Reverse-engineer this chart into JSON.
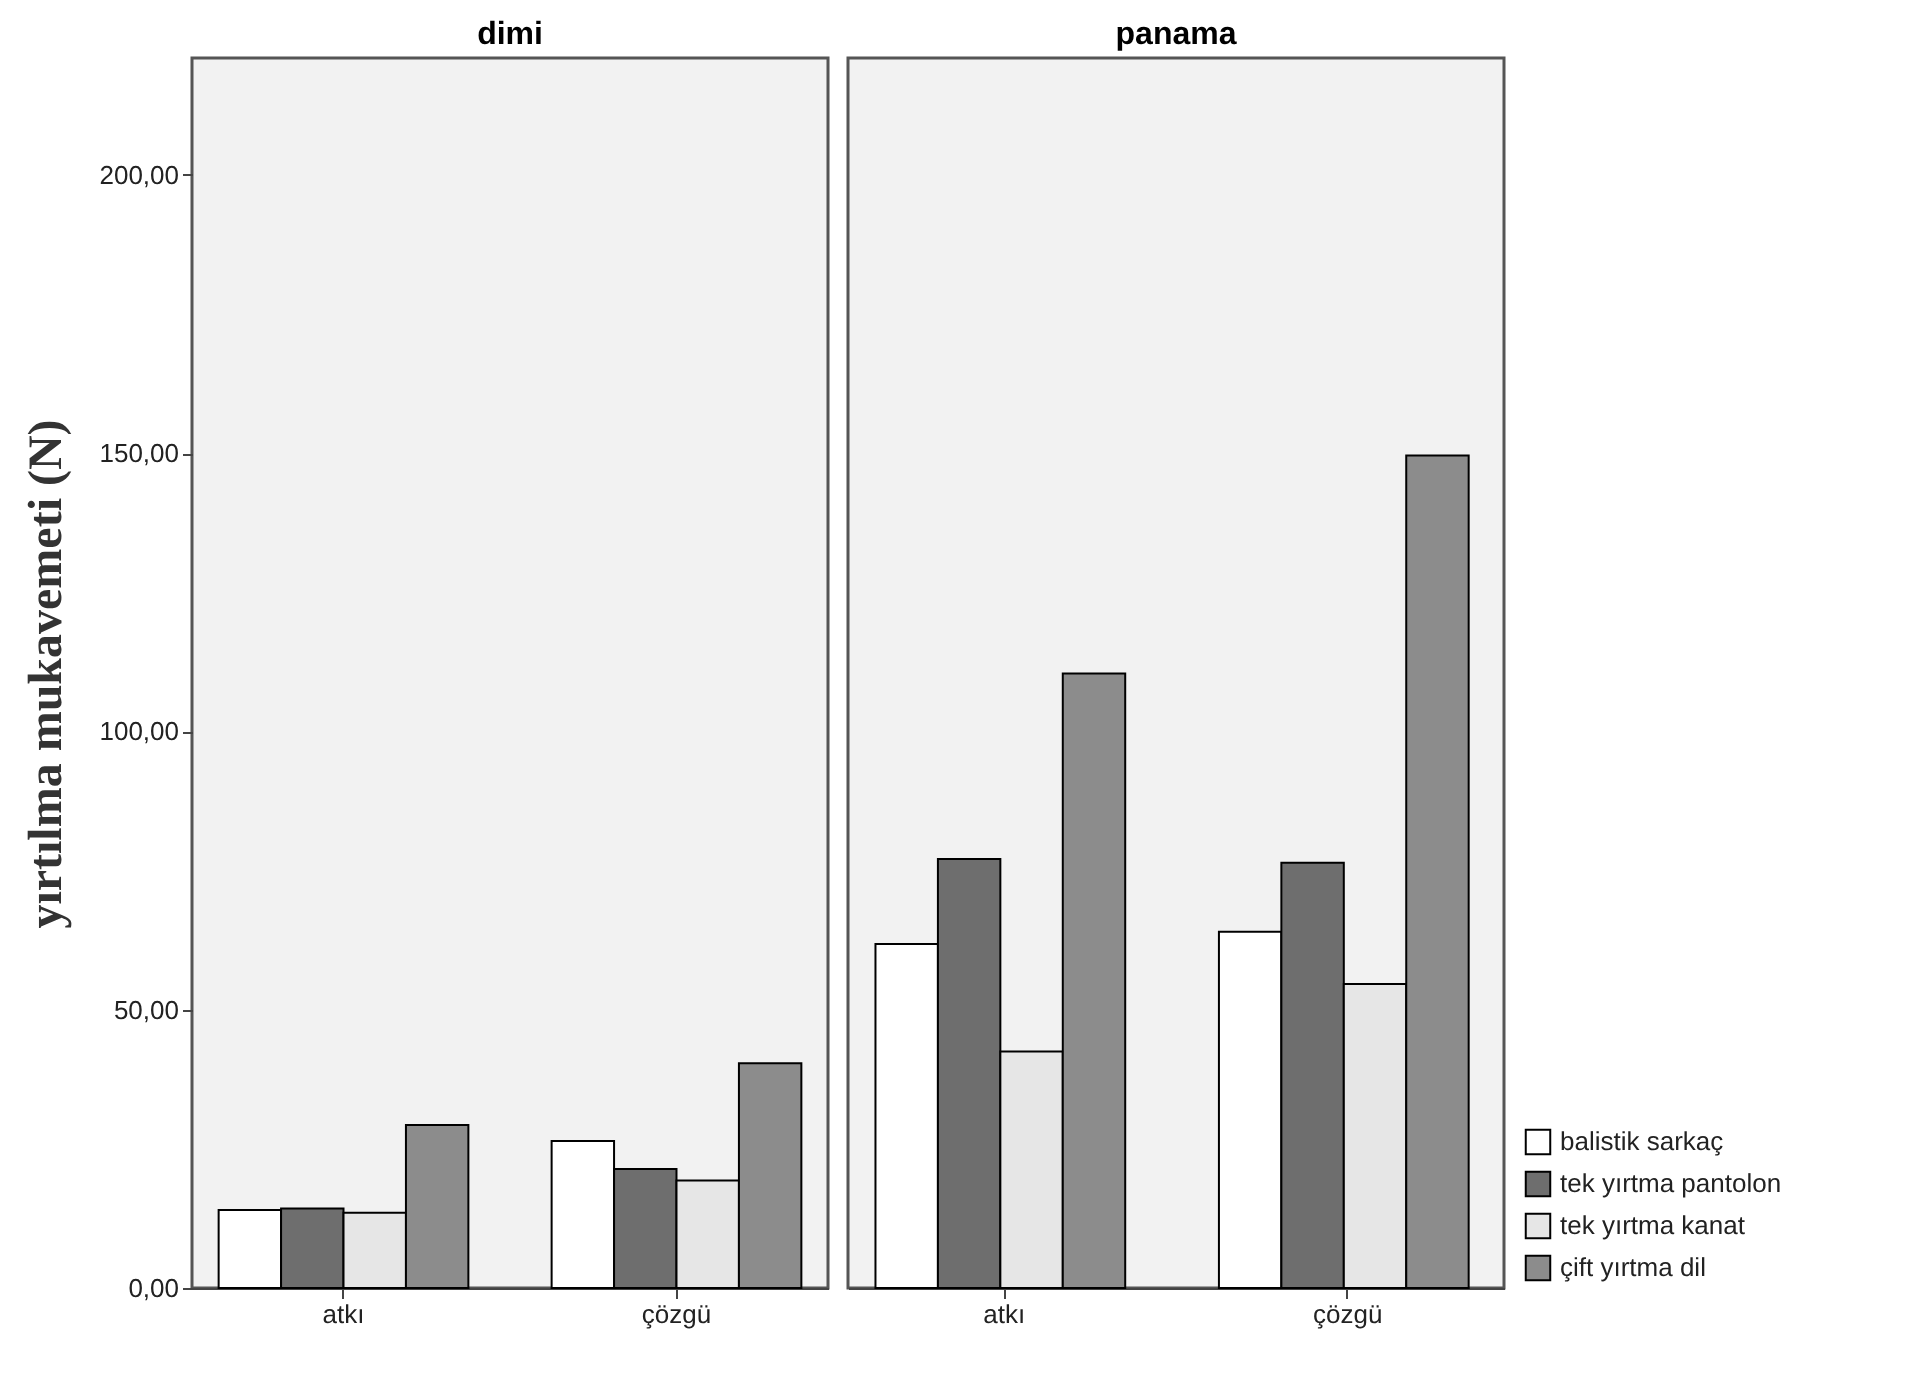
{
  "chart_data": [
    {
      "type": "bar",
      "title": "dimi",
      "ylabel": "yırtılma mukavemeti (N)",
      "categories": [
        "atkı",
        "çözgü"
      ],
      "series": [
        {
          "name": "balistik sarkaç",
          "color": "#ffffff",
          "values": [
            14.0,
            26.4
          ]
        },
        {
          "name": "tek yırtma pantolon",
          "color": "#6e6e6e",
          "values": [
            14.3,
            21.4
          ]
        },
        {
          "name": "tek yırtma kanat",
          "color": "#e6e6e6",
          "values": [
            13.5,
            19.3
          ]
        },
        {
          "name": "çift yırtma dil",
          "color": "#8c8c8c",
          "values": [
            29.3,
            40.4
          ]
        }
      ],
      "ylim": [
        0,
        221
      ],
      "yticks": [
        {
          "value": 0,
          "label": "0,00"
        },
        {
          "value": 50,
          "label": "50,00"
        },
        {
          "value": 100,
          "label": "100,00"
        },
        {
          "value": 150,
          "label": "150,00"
        },
        {
          "value": 200,
          "label": "200,00"
        }
      ],
      "legend": "right",
      "grid": false
    },
    {
      "type": "bar",
      "title": "panama",
      "categories": [
        "atkı",
        "çözgü"
      ],
      "series": [
        {
          "name": "balistik sarkaç",
          "color": "#ffffff",
          "values": [
            61.8,
            64.0
          ]
        },
        {
          "name": "tek yırtma pantolon",
          "color": "#6e6e6e",
          "values": [
            77.1,
            76.4
          ]
        },
        {
          "name": "tek yırtma kanat",
          "color": "#e6e6e6",
          "values": [
            42.5,
            54.6
          ]
        },
        {
          "name": "çift yırtma dil",
          "color": "#8c8c8c",
          "values": [
            110.4,
            149.6
          ]
        }
      ],
      "ylim": [
        0,
        221
      ],
      "tick_labels": "x",
      "legend": "right",
      "grid": false
    }
  ]
}
